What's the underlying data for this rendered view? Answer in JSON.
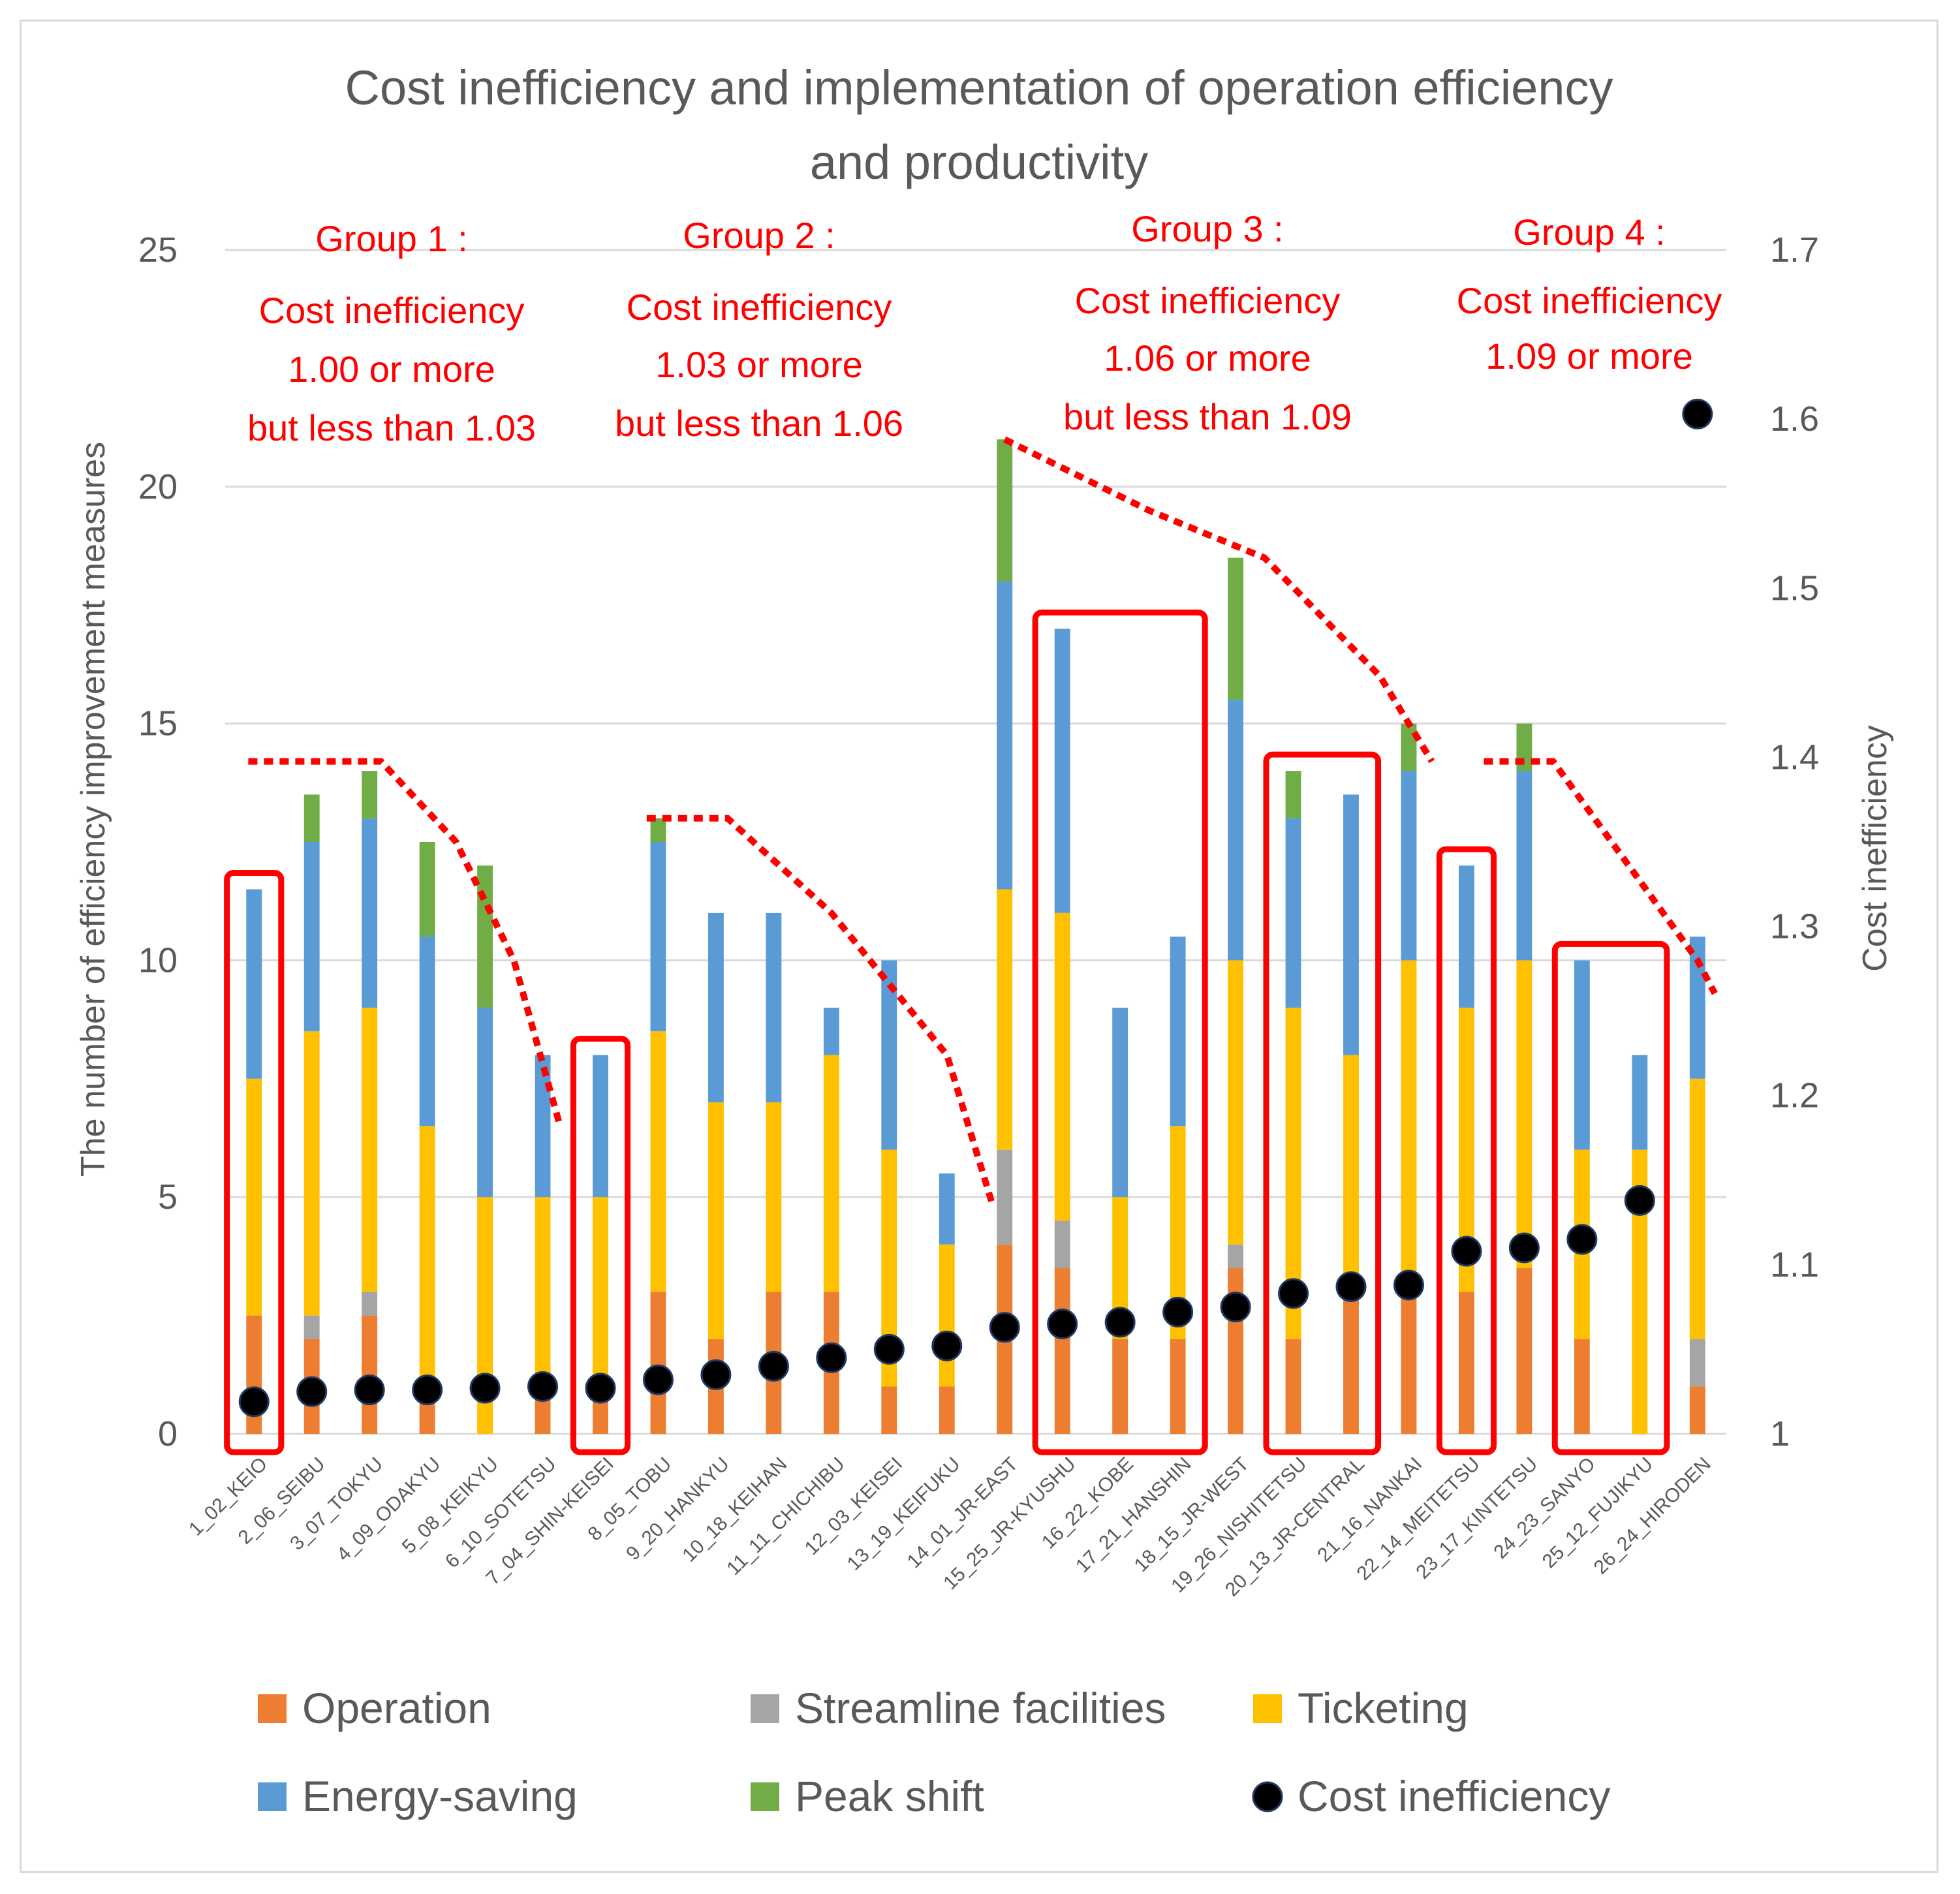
{
  "chart_data": {
    "type": "bar",
    "stacked": true,
    "title": "Cost inefficiency and implementation of operation efficiency and productivity",
    "title_lines": [
      "Cost inefficiency and implementation of operation efficiency",
      "and productivity"
    ],
    "ylabel": "The number of efficiency improvement measures",
    "y2label": "Cost inefficiency",
    "ylim": [
      0,
      25
    ],
    "y2lim": [
      1,
      1.7
    ],
    "yticks": [
      "0",
      "5",
      "10",
      "15",
      "20",
      "25"
    ],
    "y2ticks": [
      "1",
      "1.1",
      "1.2",
      "1.3",
      "1.4",
      "1.5",
      "1.6",
      "1.7"
    ],
    "categories": [
      "1_02_KEIO",
      "2_06_SEIBU",
      "3_07_TOKYU",
      "4_09_ODAKYU",
      "5_08_KEIKYU",
      "6_10_SOTETSU",
      "7_04_SHIN-KEISEI",
      "8_05_TOBU",
      "9_20_HANKYU",
      "10_18_KEIHAN",
      "11_11_CHICHIBU",
      "12_03_KEISEI",
      "13_19_KEIFUKU",
      "14_01_JR-EAST",
      "15_25_JR-KYUSHU",
      "16_22_KOBE",
      "17_21_HANSHIN",
      "18_15_JR-WEST",
      "19_26_NISHITETSU",
      "20_13_JR-CENTRAL",
      "21_16_NANKAI",
      "22_14_MEITETSU",
      "23_17_KINTETSU",
      "24_23_SANYO",
      "25_12_FUJIKYU",
      "26_24_HIRODEN"
    ],
    "series": [
      {
        "name": "Operation",
        "color": "#ed7d31",
        "values": [
          2.5,
          2,
          2.5,
          1,
          0,
          1,
          1,
          3,
          2,
          3,
          3,
          1,
          1,
          4,
          3.5,
          2,
          2,
          3.5,
          2,
          3,
          3,
          3,
          3.5,
          2,
          0,
          1
        ]
      },
      {
        "name": "Streamline facilities",
        "color": "#a5a5a5",
        "values": [
          0,
          0.5,
          0.5,
          0,
          0,
          0,
          0,
          0,
          0,
          0,
          0,
          0,
          0,
          2,
          1,
          0,
          0,
          0.5,
          0,
          0,
          0,
          0,
          0,
          0,
          0,
          1
        ]
      },
      {
        "name": "Ticketing",
        "color": "#ffc000",
        "values": [
          5,
          6,
          6,
          5.5,
          5,
          4,
          4,
          5.5,
          5,
          4,
          5,
          5,
          3,
          5.5,
          6.5,
          3,
          4.5,
          6,
          7,
          5,
          7,
          6,
          6.5,
          4,
          6,
          5.5
        ]
      },
      {
        "name": "Energy-saving",
        "color": "#5b9bd5",
        "values": [
          4,
          4,
          4,
          4,
          4,
          3,
          3,
          4,
          4,
          4,
          1,
          4,
          1.5,
          6.5,
          6,
          4,
          4,
          5.5,
          4,
          5.5,
          4,
          3,
          4,
          4,
          2,
          3
        ]
      },
      {
        "name": "Peak shift",
        "color": "#70ad47",
        "values": [
          0,
          1,
          1,
          2,
          3,
          0,
          0,
          0.5,
          0,
          0,
          0,
          0,
          0,
          3,
          0,
          0,
          0,
          3,
          1,
          0,
          1,
          0,
          1,
          0,
          0,
          0
        ]
      }
    ],
    "line_series": {
      "name": "Cost inefficiency",
      "axis": "right",
      "color": "#000000",
      "values": [
        1.019,
        1.025,
        1.026,
        1.026,
        1.027,
        1.028,
        1.027,
        1.032,
        1.035,
        1.04,
        1.045,
        1.05,
        1.052,
        1.063,
        1.065,
        1.066,
        1.072,
        1.075,
        1.083,
        1.087,
        1.088,
        1.108,
        1.11,
        1.115,
        1.138,
        1.603
      ]
    },
    "legend": [
      "Operation",
      "Streamline facilities",
      "Ticketing",
      "Energy-saving",
      "Peak shift",
      "Cost inefficiency"
    ],
    "groups": [
      {
        "lines": [
          "Group 1 :",
          "Cost inefficiency",
          "1.00 or more",
          "but less than 1.03"
        ]
      },
      {
        "lines": [
          "Group 2 :",
          "Cost inefficiency",
          "1.03 or more",
          "but less than 1.06"
        ]
      },
      {
        "lines": [
          "Group 3 :",
          "Cost inefficiency",
          "1.06 or more",
          "but less than 1.09"
        ]
      },
      {
        "lines": [
          "Group 4 :",
          "Cost inefficiency",
          "1.09 or more"
        ]
      }
    ],
    "highlight_boxes": [
      [
        0,
        0
      ],
      [
        6,
        6
      ],
      [
        14,
        16
      ],
      [
        18,
        19
      ],
      [
        21,
        21
      ],
      [
        23,
        24
      ]
    ],
    "trend_lines": [
      [
        [
          -0.1,
          14.2
        ],
        [
          2.2,
          14.2
        ],
        [
          3.5,
          12.5
        ],
        [
          4.5,
          10
        ],
        [
          5.3,
          6.5
        ]
      ],
      [
        [
          6.8,
          13
        ],
        [
          8.2,
          13
        ],
        [
          10,
          11
        ],
        [
          12,
          8
        ],
        [
          12.8,
          4.8
        ]
      ],
      [
        [
          13,
          21
        ],
        [
          15.5,
          19.5
        ],
        [
          17.5,
          18.5
        ],
        [
          19.5,
          16
        ],
        [
          20.4,
          14.2
        ]
      ],
      [
        [
          21.3,
          14.2
        ],
        [
          22.5,
          14.2
        ],
        [
          25,
          10
        ],
        [
          25.3,
          9.3
        ]
      ]
    ]
  }
}
